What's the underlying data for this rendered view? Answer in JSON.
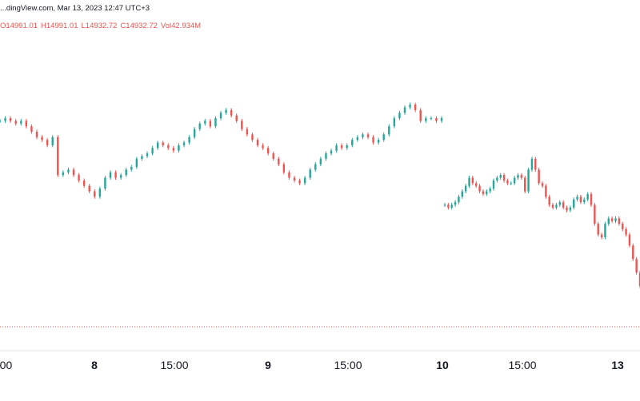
{
  "header": {
    "source_line": "...dingView.com, Mar 13, 2023 12:47 UTC+3",
    "ohlc": {
      "open": "O14991.01",
      "high": "H14991.01",
      "low": "L14932.72",
      "close": "C14932.72",
      "volume": "Vol42.934M"
    }
  },
  "chart_data": {
    "type": "candlestick",
    "title": "",
    "xlabel": "",
    "ylabel": "",
    "x_ticks": [
      "...00",
      "8",
      "15:00",
      "9",
      "15:00",
      "10",
      "15:00",
      "13"
    ],
    "bold_ticks": [
      "8",
      "9",
      "10",
      "13"
    ],
    "colors": {
      "up": "#26a69a",
      "down": "#ef5350",
      "last_price_line": "#ef5350"
    },
    "grid": false,
    "price_trend_note": "values read as relative level (0 = chart top, 100 = dotted last-price line)",
    "levels": [
      24,
      23,
      24,
      25,
      24,
      26,
      28,
      30,
      31,
      33,
      30,
      44,
      43,
      42,
      44,
      46,
      48,
      50,
      52,
      49,
      45,
      43,
      45,
      44,
      42,
      41,
      38,
      37,
      36,
      34,
      32,
      33,
      34,
      35,
      33,
      32,
      30,
      27,
      25,
      24,
      26,
      23,
      21,
      20,
      22,
      24,
      27,
      29,
      31,
      33,
      34,
      36,
      38,
      40,
      43,
      45,
      46,
      47,
      45,
      42,
      40,
      38,
      36,
      35,
      33,
      34,
      33,
      31,
      30,
      29,
      30,
      32,
      31,
      29,
      26,
      23,
      21,
      19,
      18,
      20,
      24,
      23,
      23,
      24,
      23,
      55,
      56,
      55,
      54,
      52,
      50,
      48,
      45,
      47,
      48,
      50,
      51,
      50,
      49,
      46,
      45,
      44,
      46,
      47,
      47,
      45,
      44,
      45,
      50,
      42,
      38,
      42,
      47,
      48,
      52,
      55,
      56,
      55,
      54,
      56,
      57,
      56,
      53,
      52,
      54,
      53,
      51,
      55,
      62,
      66,
      67,
      62,
      60,
      61,
      60,
      62,
      64,
      66,
      70,
      75,
      80,
      85
    ]
  }
}
